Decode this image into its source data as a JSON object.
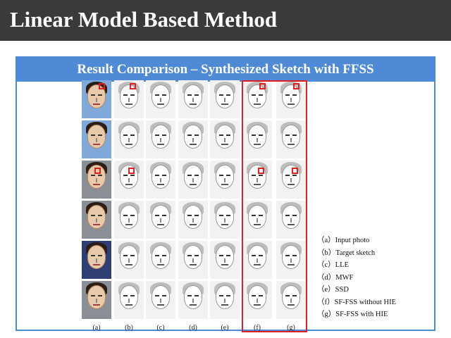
{
  "slide": {
    "title": "Linear Model Based Method",
    "panel_title": "Result Comparison – Synthesized Sketch with FFSS"
  },
  "figure": {
    "column_labels": [
      "(a)",
      "(b)",
      "(c)",
      "(d)",
      "(e)",
      "(f)",
      "(g)"
    ],
    "rows": 6,
    "highlighted_columns": [
      "(f)",
      "(g)"
    ],
    "marker_color": "#e02020"
  },
  "legend": [
    "（a）Input photo",
    "（b）Target sketch",
    "（c）LLE",
    "（d）MWF",
    "（e）SSD",
    "（f）SF-FSS without HIE",
    "（g）SF-FSS with HIE"
  ],
  "colors": {
    "title_bar": "#3a3a3a",
    "panel_accent": "#4f8ad6",
    "highlight": "#e02020"
  }
}
